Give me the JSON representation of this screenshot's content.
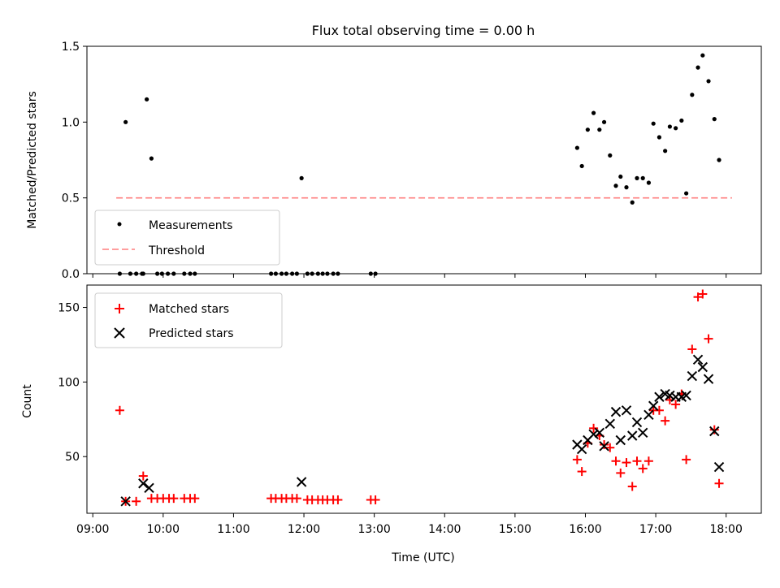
{
  "chart_data": [
    {
      "type": "scatter",
      "title": "Flux total observing time = 0.00 h",
      "ylabel": "Matched/Predicted stars",
      "ylim": [
        0,
        1.5
      ],
      "yticks": [
        "0.0",
        "0.5",
        "1.0",
        "1.5"
      ],
      "legend": {
        "position": "lower-left",
        "entries": [
          {
            "label": "Measurements",
            "marker": "dot",
            "color": "#000000"
          },
          {
            "label": "Threshold",
            "marker": "dashed-line",
            "color": "#ff7f7f"
          }
        ]
      },
      "threshold": {
        "y": 0.5,
        "x_start": "09:20",
        "x_end": "18:05",
        "color": "#ff7f7f"
      },
      "series": [
        {
          "name": "Measurements",
          "color": "#000000",
          "points": [
            [
              "09:23",
              0
            ],
            [
              "09:28",
              1.0
            ],
            [
              "09:32",
              0
            ],
            [
              "09:37",
              0
            ],
            [
              "09:42",
              0
            ],
            [
              "09:43",
              0
            ],
            [
              "09:46",
              1.15
            ],
            [
              "09:50",
              0.76
            ],
            [
              "09:55",
              0
            ],
            [
              "09:59",
              0
            ],
            [
              "10:04",
              0
            ],
            [
              "10:09",
              0
            ],
            [
              "10:18",
              0
            ],
            [
              "10:23",
              0
            ],
            [
              "10:27",
              0
            ],
            [
              "11:32",
              0
            ],
            [
              "11:36",
              0
            ],
            [
              "11:41",
              0
            ],
            [
              "11:45",
              0
            ],
            [
              "11:50",
              0
            ],
            [
              "11:54",
              0
            ],
            [
              "11:58",
              0.63
            ],
            [
              "12:03",
              0
            ],
            [
              "12:07",
              0
            ],
            [
              "12:12",
              0
            ],
            [
              "12:16",
              0
            ],
            [
              "12:20",
              0
            ],
            [
              "12:25",
              0
            ],
            [
              "12:29",
              0
            ],
            [
              "12:57",
              0
            ],
            [
              "13:01",
              0
            ],
            [
              "15:53",
              0.83
            ],
            [
              "15:57",
              0.71
            ],
            [
              "16:02",
              0.95
            ],
            [
              "16:07",
              1.06
            ],
            [
              "16:12",
              0.95
            ],
            [
              "16:16",
              1.0
            ],
            [
              "16:21",
              0.78
            ],
            [
              "16:26",
              0.58
            ],
            [
              "16:30",
              0.64
            ],
            [
              "16:35",
              0.57
            ],
            [
              "16:40",
              0.47
            ],
            [
              "16:44",
              0.63
            ],
            [
              "16:49",
              0.63
            ],
            [
              "16:54",
              0.6
            ],
            [
              "16:58",
              0.99
            ],
            [
              "17:03",
              0.9
            ],
            [
              "17:08",
              0.81
            ],
            [
              "17:12",
              0.97
            ],
            [
              "17:17",
              0.96
            ],
            [
              "17:22",
              1.01
            ],
            [
              "17:26",
              0.53
            ],
            [
              "17:31",
              1.18
            ],
            [
              "17:36",
              1.36
            ],
            [
              "17:40",
              1.44
            ],
            [
              "17:45",
              1.27
            ],
            [
              "17:50",
              1.02
            ],
            [
              "17:54",
              0.75
            ]
          ]
        }
      ]
    },
    {
      "type": "scatter",
      "xlabel": "Time (UTC)",
      "ylabel": "Count",
      "ylim": [
        12,
        165
      ],
      "yticks": [
        "50",
        "100",
        "150"
      ],
      "xticks": [
        "09:00",
        "10:00",
        "11:00",
        "12:00",
        "13:00",
        "14:00",
        "15:00",
        "16:00",
        "17:00",
        "18:00"
      ],
      "xlim": [
        "08:55",
        "18:30"
      ],
      "legend": {
        "position": "top-left",
        "entries": [
          {
            "label": "Matched stars",
            "marker": "plus",
            "color": "#ff0000"
          },
          {
            "label": "Predicted stars",
            "marker": "x",
            "color": "#000000"
          }
        ]
      },
      "series": [
        {
          "name": "Matched stars",
          "color": "#ff0000",
          "points": [
            [
              "09:23",
              81
            ],
            [
              "09:28",
              20
            ],
            [
              "09:37",
              20
            ],
            [
              "09:43",
              37
            ],
            [
              "09:50",
              22
            ],
            [
              "09:55",
              22
            ],
            [
              "10:00",
              22
            ],
            [
              "10:05",
              22
            ],
            [
              "10:09",
              22
            ],
            [
              "10:18",
              22
            ],
            [
              "10:23",
              22
            ],
            [
              "10:27",
              22
            ],
            [
              "11:32",
              22
            ],
            [
              "11:36",
              22
            ],
            [
              "11:41",
              22
            ],
            [
              "11:45",
              22
            ],
            [
              "11:50",
              22
            ],
            [
              "11:54",
              22
            ],
            [
              "12:03",
              21
            ],
            [
              "12:07",
              21
            ],
            [
              "12:12",
              21
            ],
            [
              "12:16",
              21
            ],
            [
              "12:20",
              21
            ],
            [
              "12:25",
              21
            ],
            [
              "12:29",
              21
            ],
            [
              "12:57",
              21
            ],
            [
              "13:01",
              21
            ],
            [
              "15:53",
              48
            ],
            [
              "15:57",
              40
            ],
            [
              "16:02",
              59
            ],
            [
              "16:07",
              69
            ],
            [
              "16:12",
              64
            ],
            [
              "16:16",
              58
            ],
            [
              "16:21",
              56
            ],
            [
              "16:26",
              47
            ],
            [
              "16:30",
              39
            ],
            [
              "16:35",
              46
            ],
            [
              "16:40",
              30
            ],
            [
              "16:44",
              47
            ],
            [
              "16:49",
              42
            ],
            [
              "16:54",
              47
            ],
            [
              "16:58",
              81
            ],
            [
              "17:03",
              81
            ],
            [
              "17:08",
              74
            ],
            [
              "17:12",
              88
            ],
            [
              "17:17",
              85
            ],
            [
              "17:22",
              92
            ],
            [
              "17:26",
              48
            ],
            [
              "17:31",
              122
            ],
            [
              "17:36",
              157
            ],
            [
              "17:40",
              159
            ],
            [
              "17:45",
              129
            ],
            [
              "17:50",
              68
            ],
            [
              "17:54",
              32
            ]
          ]
        },
        {
          "name": "Predicted stars",
          "color": "#000000",
          "points": [
            [
              "09:28",
              20
            ],
            [
              "09:43",
              32
            ],
            [
              "09:48",
              29
            ],
            [
              "11:58",
              33
            ],
            [
              "15:53",
              58
            ],
            [
              "15:57",
              55
            ],
            [
              "16:02",
              61
            ],
            [
              "16:07",
              65
            ],
            [
              "16:12",
              66
            ],
            [
              "16:16",
              57
            ],
            [
              "16:21",
              72
            ],
            [
              "16:26",
              80
            ],
            [
              "16:30",
              61
            ],
            [
              "16:35",
              81
            ],
            [
              "16:40",
              64
            ],
            [
              "16:44",
              73
            ],
            [
              "16:49",
              66
            ],
            [
              "16:54",
              78
            ],
            [
              "16:58",
              84
            ],
            [
              "17:03",
              90
            ],
            [
              "17:08",
              92
            ],
            [
              "17:12",
              91
            ],
            [
              "17:17",
              90
            ],
            [
              "17:22",
              90
            ],
            [
              "17:26",
              91
            ],
            [
              "17:31",
              104
            ],
            [
              "17:36",
              115
            ],
            [
              "17:40",
              110
            ],
            [
              "17:45",
              102
            ],
            [
              "17:50",
              67
            ],
            [
              "17:54",
              43
            ]
          ]
        }
      ]
    }
  ]
}
